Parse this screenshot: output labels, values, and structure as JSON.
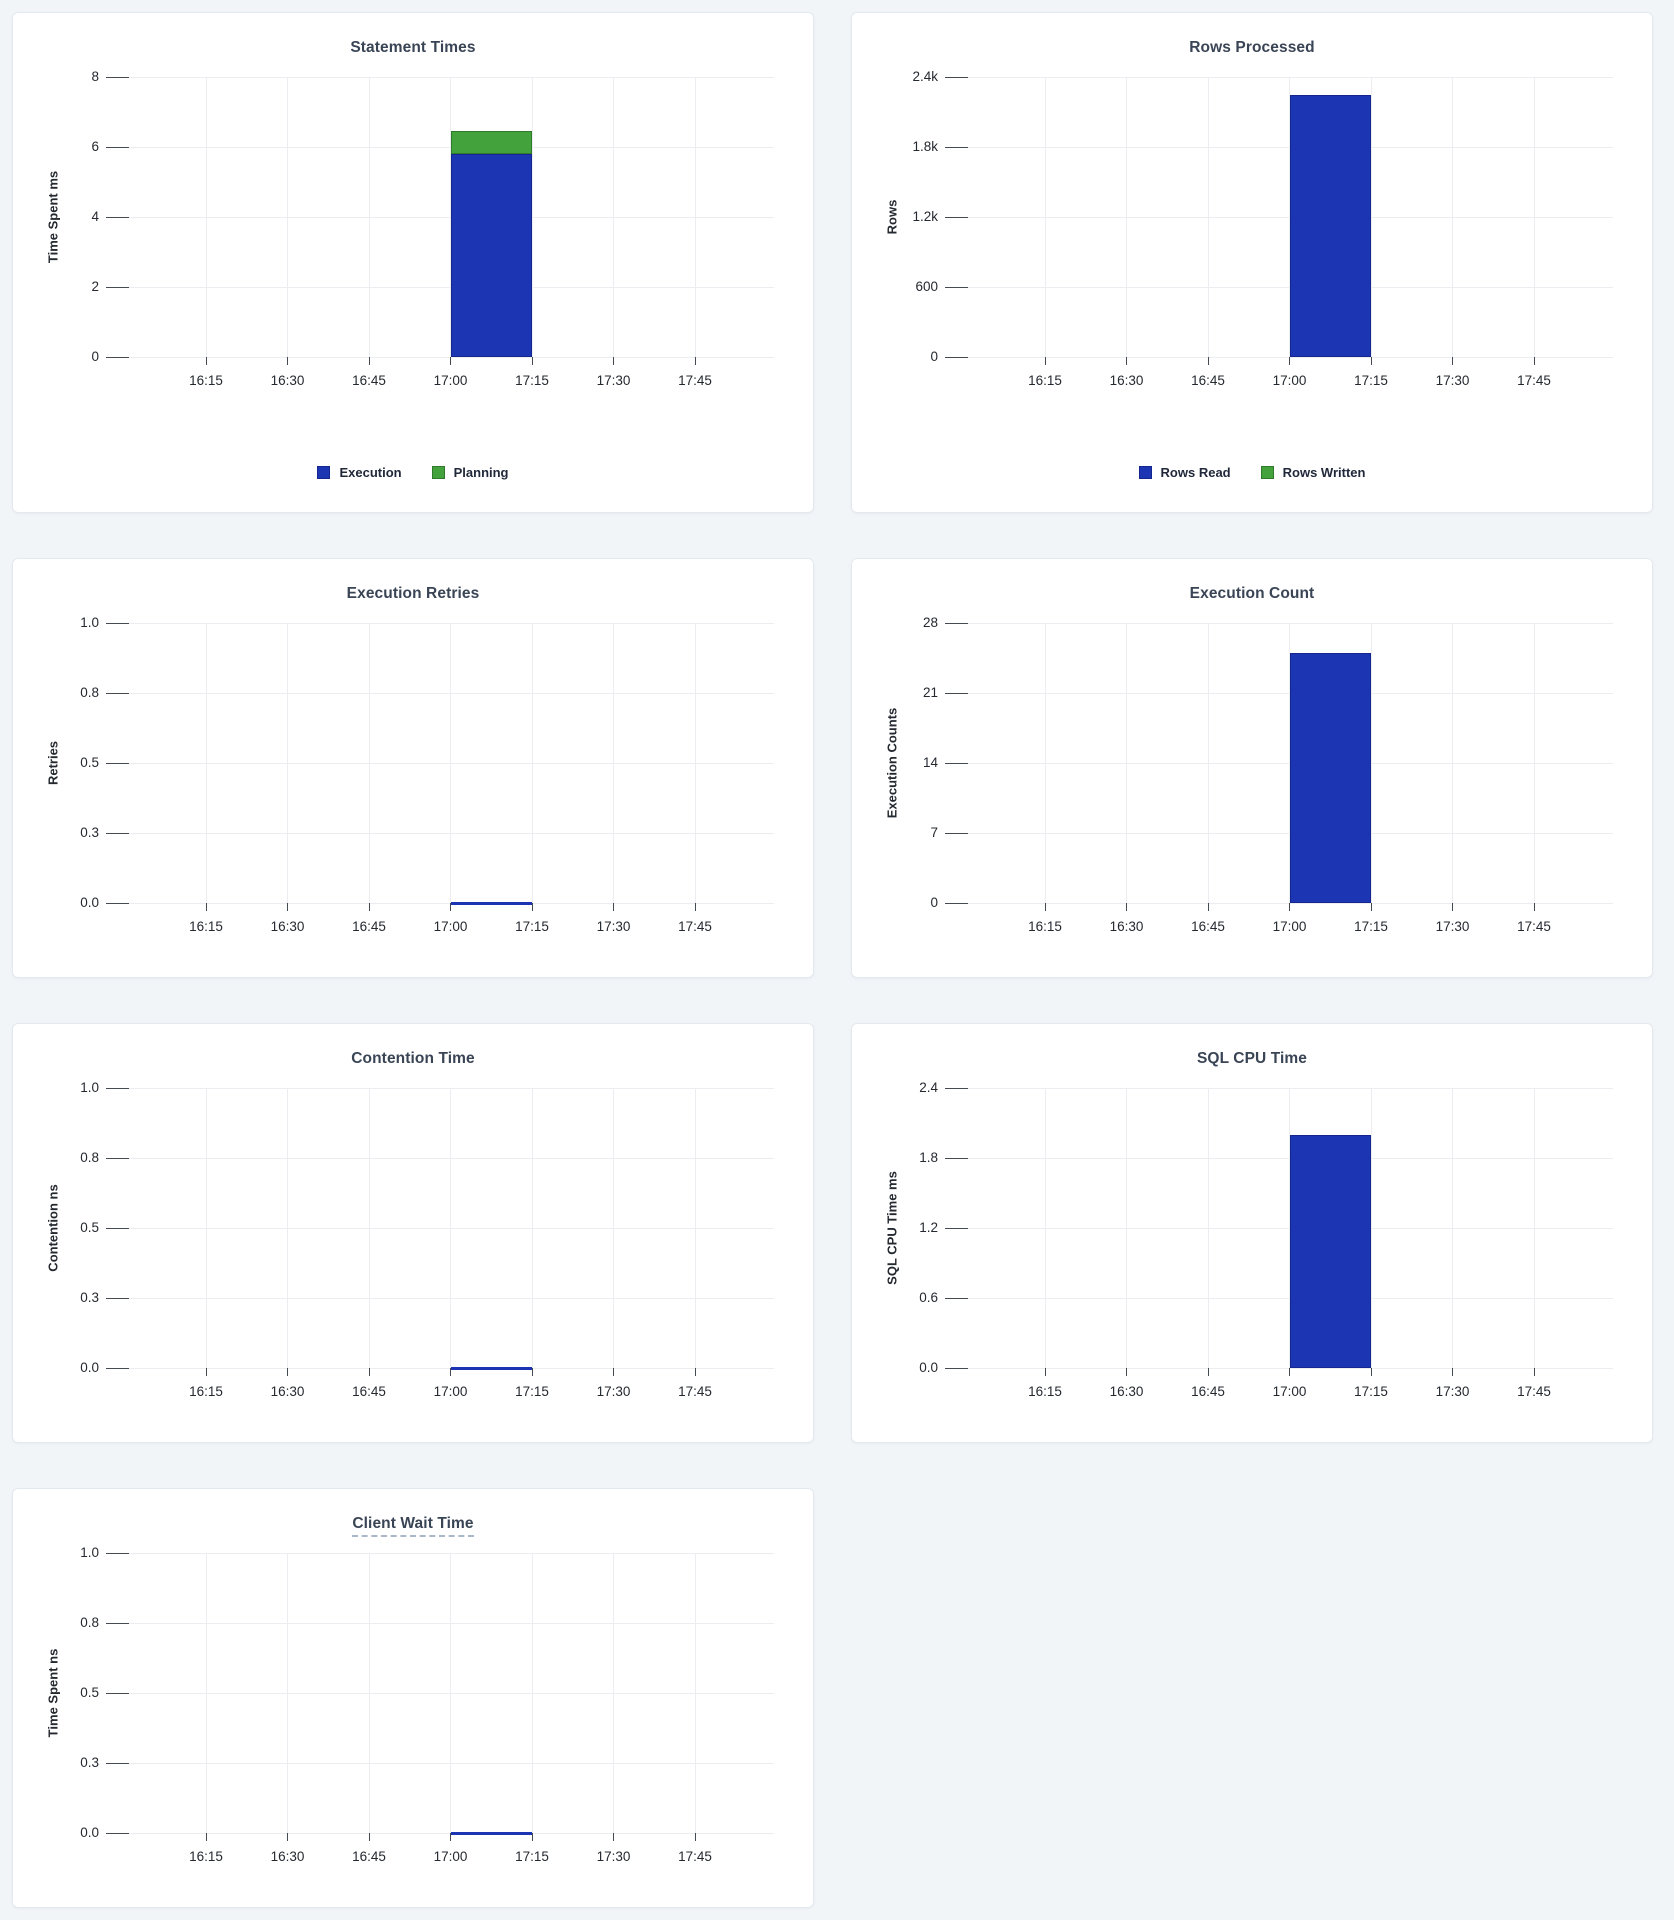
{
  "page": {
    "background": "#f1f5f8"
  },
  "colors": {
    "bar_blue": "#1c36b3",
    "bar_blue_border": "#15278f",
    "bar_green": "#43a23c",
    "bar_green_border": "#2f7b2b",
    "title_text": "#394455",
    "axis_text": "#242930",
    "tick_mark": "#454a52",
    "gridline": "#ebedf0",
    "legend_text": "#20283a",
    "card_bg": "#ffffff",
    "card_border": "#e4e9ef"
  },
  "chart_data": [
    {
      "type": "bar",
      "title": "Statement Times",
      "ylabel": "Time Spent ms",
      "ymin": 0,
      "ymax": 8,
      "y_tick_labels": [
        "0",
        "2",
        "4",
        "6",
        "8"
      ],
      "x_tick_labels": [
        "16:15",
        "16:30",
        "16:45",
        "17:00",
        "17:15",
        "17:30",
        "17:45"
      ],
      "grid": true,
      "stacked": true,
      "legend": true,
      "legend_position": "bottom",
      "series": [
        {
          "name": "Execution",
          "color": "blue",
          "bars": [
            {
              "start": "17:00",
              "end": "17:15",
              "value": 5.8
            }
          ]
        },
        {
          "name": "Planning",
          "color": "green",
          "bars": [
            {
              "start": "17:00",
              "end": "17:15",
              "value": 0.65
            }
          ]
        }
      ]
    },
    {
      "type": "bar",
      "title": "Rows Processed",
      "ylabel": "Rows",
      "ymin": 0,
      "ymax": 2400,
      "y_tick_labels": [
        "0",
        "600",
        "1.2k",
        "1.8k",
        "2.4k"
      ],
      "x_tick_labels": [
        "16:15",
        "16:30",
        "16:45",
        "17:00",
        "17:15",
        "17:30",
        "17:45"
      ],
      "grid": true,
      "stacked": true,
      "legend": true,
      "legend_position": "bottom",
      "series": [
        {
          "name": "Rows Read",
          "color": "blue",
          "bars": [
            {
              "start": "17:00",
              "end": "17:15",
              "value": 2250
            }
          ]
        },
        {
          "name": "Rows Written",
          "color": "green",
          "bars": [
            {
              "start": "17:00",
              "end": "17:15",
              "value": 0
            }
          ]
        }
      ]
    },
    {
      "type": "line",
      "title": "Execution Retries",
      "ylabel": "Retries",
      "ymin": 0,
      "ymax": 1,
      "y_tick_labels": [
        "0.0",
        "0.3",
        "0.5",
        "0.8",
        "1.0"
      ],
      "x_tick_labels": [
        "16:15",
        "16:30",
        "16:45",
        "17:00",
        "17:15",
        "17:30",
        "17:45"
      ],
      "grid": true,
      "legend": false,
      "series": [
        {
          "name": "Retries",
          "color": "blue",
          "segments": [
            {
              "start": "17:00",
              "end": "17:15",
              "value": 0
            }
          ]
        }
      ]
    },
    {
      "type": "bar",
      "title": "Execution Count",
      "ylabel": "Execution Counts",
      "ymin": 0,
      "ymax": 28,
      "y_tick_labels": [
        "0",
        "7",
        "14",
        "21",
        "28"
      ],
      "x_tick_labels": [
        "16:15",
        "16:30",
        "16:45",
        "17:00",
        "17:15",
        "17:30",
        "17:45"
      ],
      "grid": true,
      "legend": false,
      "series": [
        {
          "name": "Execution Count",
          "color": "blue",
          "bars": [
            {
              "start": "17:00",
              "end": "17:15",
              "value": 25
            }
          ]
        }
      ]
    },
    {
      "type": "line",
      "title": "Contention Time",
      "ylabel": "Contention ns",
      "ymin": 0,
      "ymax": 1,
      "y_tick_labels": [
        "0.0",
        "0.3",
        "0.5",
        "0.8",
        "1.0"
      ],
      "x_tick_labels": [
        "16:15",
        "16:30",
        "16:45",
        "17:00",
        "17:15",
        "17:30",
        "17:45"
      ],
      "grid": true,
      "legend": false,
      "series": [
        {
          "name": "Contention",
          "color": "blue",
          "segments": [
            {
              "start": "17:00",
              "end": "17:15",
              "value": 0
            }
          ]
        }
      ]
    },
    {
      "type": "bar",
      "title": "SQL CPU Time",
      "ylabel": "SQL CPU Time ms",
      "ymin": 0,
      "ymax": 2.4,
      "y_tick_labels": [
        "0.0",
        "0.6",
        "1.2",
        "1.8",
        "2.4"
      ],
      "x_tick_labels": [
        "16:15",
        "16:30",
        "16:45",
        "17:00",
        "17:15",
        "17:30",
        "17:45"
      ],
      "grid": true,
      "legend": false,
      "series": [
        {
          "name": "SQL CPU Time",
          "color": "blue",
          "bars": [
            {
              "start": "17:00",
              "end": "17:15",
              "value": 2.0
            }
          ]
        }
      ]
    },
    {
      "type": "line",
      "title": "Client Wait Time",
      "title_underline": true,
      "ylabel": "Time Spent ns",
      "ymin": 0,
      "ymax": 1,
      "y_tick_labels": [
        "0.0",
        "0.3",
        "0.5",
        "0.8",
        "1.0"
      ],
      "x_tick_labels": [
        "16:15",
        "16:30",
        "16:45",
        "17:00",
        "17:15",
        "17:30",
        "17:45"
      ],
      "grid": true,
      "legend": false,
      "series": [
        {
          "name": "Client Wait",
          "color": "blue",
          "segments": [
            {
              "start": "17:00",
              "end": "17:15",
              "value": 0
            }
          ]
        }
      ]
    }
  ]
}
